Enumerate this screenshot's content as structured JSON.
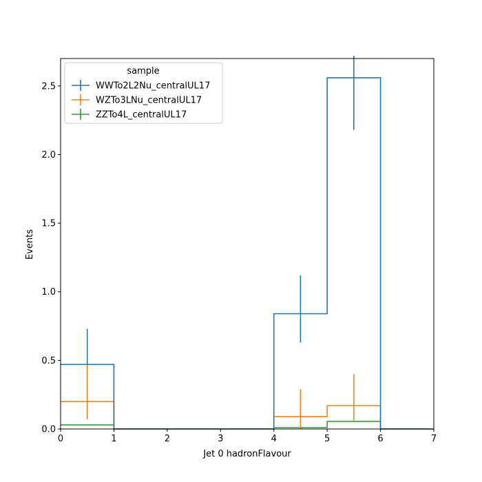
{
  "chart_data": {
    "type": "step",
    "xlabel": "Jet 0 hadronFlavour",
    "ylabel": "Events",
    "xlim": [
      0,
      7
    ],
    "ylim": [
      0,
      2.7
    ],
    "x_ticks": [
      0,
      1,
      2,
      3,
      4,
      5,
      6,
      7
    ],
    "y_ticks": [
      0.0,
      0.5,
      1.0,
      1.5,
      2.0,
      2.5
    ],
    "grid": false,
    "legend": {
      "title": "sample",
      "placement": "top-left"
    },
    "bin_edges": [
      0,
      1,
      2,
      3,
      4,
      5,
      6,
      7
    ],
    "series": [
      {
        "name": "WWTo2L2Nu_centralUL17",
        "color": "#1f77b4",
        "values": [
          0.47,
          0,
          0,
          0,
          0.84,
          2.56,
          0
        ],
        "errors": [
          [
            0.47,
            0.73
          ],
          null,
          null,
          null,
          [
            0.63,
            1.12
          ],
          [
            2.18,
            2.73
          ],
          null
        ]
      },
      {
        "name": "WZTo3LNu_centralUL17",
        "color": "#ff7f0e",
        "values": [
          0.2,
          0,
          0,
          0,
          0.09,
          0.17,
          0
        ],
        "errors": [
          [
            0.07,
            0.47
          ],
          null,
          null,
          null,
          [
            0.0,
            0.29
          ],
          [
            0.06,
            0.4
          ],
          null
        ]
      },
      {
        "name": "ZZTo4L_centralUL17",
        "color": "#2ca02c",
        "values": [
          0.03,
          0,
          0,
          0,
          0.01,
          0.055,
          0
        ],
        "errors": [
          null,
          null,
          null,
          null,
          null,
          null,
          null
        ]
      }
    ]
  }
}
